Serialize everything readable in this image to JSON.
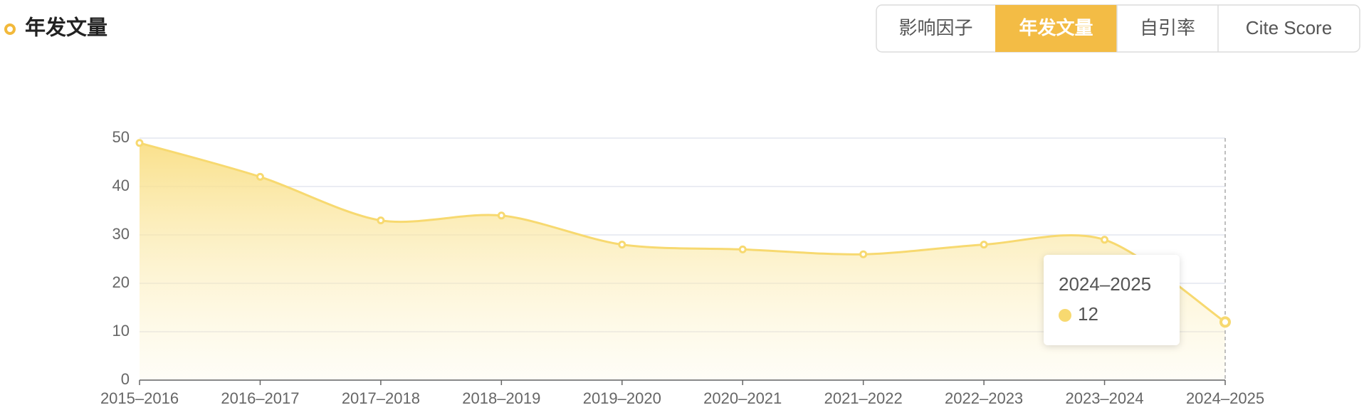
{
  "header": {
    "title": "年发文量",
    "tabs": [
      "影响因子",
      "年发文量",
      "自引率",
      "Cite Score"
    ],
    "active_tab": 1
  },
  "chart_data": {
    "type": "area",
    "categories": [
      "2015–2016",
      "2016–2017",
      "2017–2018",
      "2018–2019",
      "2019–2020",
      "2020–2021",
      "2021–2022",
      "2022–2023",
      "2023–2024",
      "2024–2025"
    ],
    "values": [
      49,
      42,
      33,
      34,
      28,
      27,
      26,
      28,
      29,
      12
    ],
    "color": "#f7d970",
    "ylim": [
      0,
      50
    ],
    "yticks": [
      0,
      10,
      20,
      30,
      40,
      50
    ],
    "grid": true
  }
}
